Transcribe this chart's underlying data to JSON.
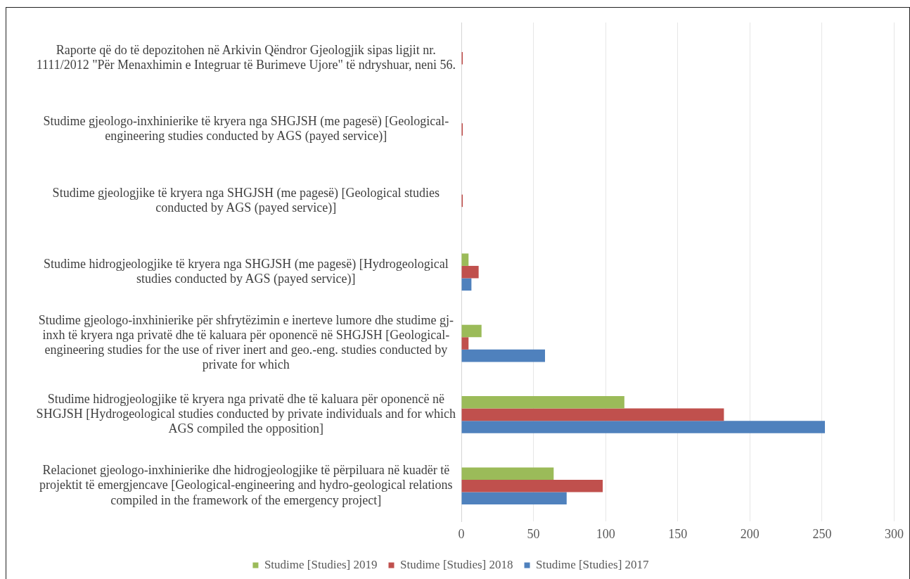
{
  "chart_data": {
    "type": "bar",
    "orientation": "horizontal",
    "categories": [
      "Raporte që do të depozitohen në Arkivin Qëndror Gjeologjik sipas ligjit nr. 1111/2012 \"Për Menaxhimin e Integruar të Burimeve Ujore\" të ndryshuar, neni 56.",
      "Studime gjeologo-inxhinierike të kryera nga SHGJSH (me pagesë) [Geological-engineering studies conducted by AGS (payed service)]",
      "Studime gjeologjike të kryera nga SHGJSH (me pagesë) [Geological studies conducted by AGS (payed service)]",
      "Studime hidrogjeologjike të kryera nga SHGJSH (me pagesë) [Hydrogeological studies conducted by AGS (payed service)]",
      "Studime gjeologo-inxhinierike për shfrytëzimin e inerteve lumore dhe studime gj-inxh të kryera nga privatë dhe të kaluara për oponencë në SHGJSH [Geological-engineering studies for the use of river inert and geo.-eng. studies conducted by private for which",
      "Studime hidrogjeologjike të kryera nga privatë dhe të kaluara për oponencë në SHGJSH [Hydrogeological studies conducted by private individuals and for which AGS compiled the opposition]",
      "Relacionet gjeologo-inxhinierike dhe hidrogjeologjike të përpiluara në kuadër të projektit të emergjencave [Geological-engineering and hydro-geological relations compiled in the framework of the emergency project]"
    ],
    "series": [
      {
        "name": "Studime [Studies] 2019",
        "color": "#9bbb59",
        "values": [
          0,
          0,
          0,
          5,
          14,
          113,
          64
        ]
      },
      {
        "name": "Studime [Studies] 2018",
        "color": "#c0504d",
        "values": [
          1,
          1,
          1,
          12,
          5,
          182,
          98
        ]
      },
      {
        "name": "Studime [Studies] 2017",
        "color": "#4f81bd",
        "values": [
          0,
          0,
          0,
          7,
          58,
          252,
          73
        ]
      }
    ],
    "xlim": [
      0,
      300
    ],
    "xticks": [
      0,
      50,
      100,
      150,
      200,
      250,
      300
    ],
    "grid": "x",
    "legend": "bottom"
  }
}
